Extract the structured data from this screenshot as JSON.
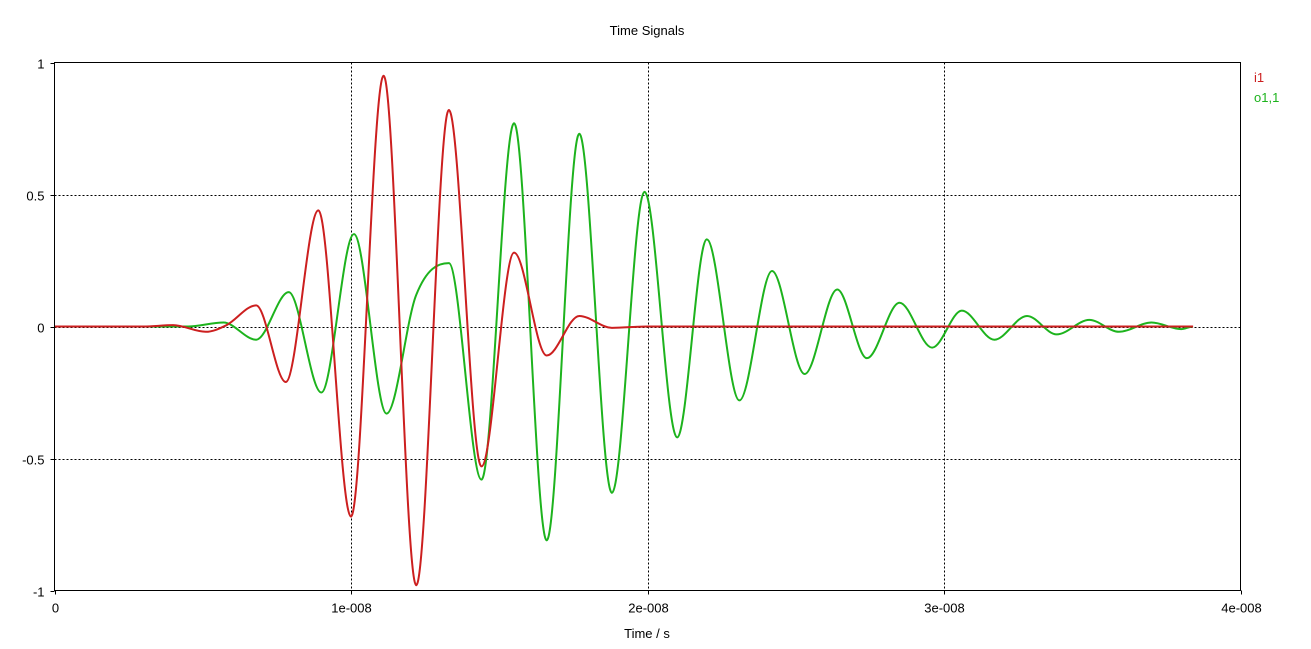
{
  "chart_data": {
    "type": "line",
    "title": "Time Signals",
    "xlabel": "Time / s",
    "ylabel": "",
    "xlim": [
      0,
      4e-08
    ],
    "ylim": [
      -1,
      1
    ],
    "grid": true,
    "legend_position": "right",
    "x_ticks": [
      0,
      1e-08,
      2e-08,
      3e-08,
      4e-08
    ],
    "x_tick_labels": [
      "0",
      "1e-008",
      "2e-008",
      "3e-008",
      "4e-008"
    ],
    "y_ticks": [
      -1,
      -0.5,
      0,
      0.5,
      1
    ],
    "y_tick_labels": [
      "-1",
      "-0.5",
      "0",
      "0.5",
      "1"
    ],
    "series": [
      {
        "name": "i1",
        "color": "#cc1f1f",
        "x": [
          0,
          3e-09,
          4e-09,
          5.1e-09,
          5.8e-09,
          6.8e-09,
          7.8e-09,
          8.9e-09,
          1e-08,
          1.11e-08,
          1.22e-08,
          1.33e-08,
          1.44e-08,
          1.55e-08,
          1.66e-08,
          1.77e-08,
          1.88e-08,
          2e-08,
          3.84e-08
        ],
        "y": [
          0,
          0,
          0.005,
          -0.02,
          0.005,
          0.08,
          -0.21,
          0.44,
          -0.72,
          0.95,
          -0.98,
          0.82,
          -0.53,
          0.28,
          -0.11,
          0.04,
          -0.005,
          0,
          0
        ]
      },
      {
        "name": "o1,1",
        "color": "#1db31d",
        "x": [
          0,
          4.5e-09,
          5.7e-09,
          6.8e-09,
          7.9e-09,
          9e-09,
          1.01e-08,
          1.12e-08,
          1.22e-08,
          1.33e-08,
          1.44e-08,
          1.55e-08,
          1.66e-08,
          1.77e-08,
          1.88e-08,
          1.99e-08,
          2.1e-08,
          2.2e-08,
          2.31e-08,
          2.42e-08,
          2.53e-08,
          2.64e-08,
          2.74e-08,
          2.85e-08,
          2.96e-08,
          3.06e-08,
          3.17e-08,
          3.28e-08,
          3.38e-08,
          3.49e-08,
          3.59e-08,
          3.7e-08,
          3.8e-08,
          3.84e-08
        ],
        "y": [
          0,
          0,
          0.015,
          -0.05,
          0.13,
          -0.25,
          0.35,
          -0.33,
          0.12,
          0.24,
          -0.58,
          0.77,
          -0.81,
          0.73,
          -0.63,
          0.51,
          -0.42,
          0.33,
          -0.28,
          0.21,
          -0.18,
          0.14,
          -0.12,
          0.09,
          -0.08,
          0.06,
          -0.05,
          0.04,
          -0.03,
          0.025,
          -0.02,
          0.015,
          -0.01,
          0
        ]
      }
    ]
  }
}
